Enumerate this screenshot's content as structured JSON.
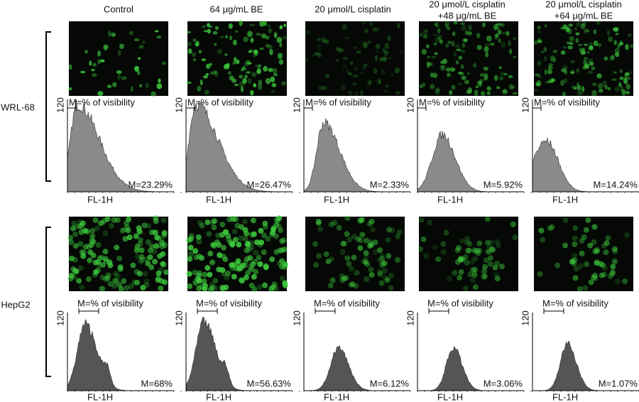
{
  "columns": [
    {
      "title": [
        "Control"
      ]
    },
    {
      "title": [
        "64 μg/mL BE"
      ]
    },
    {
      "title": [
        "20 μmol/L cisplatin"
      ]
    },
    {
      "title": [
        "20 μmol/L cisplatin",
        "+48 μg/mL BE"
      ]
    },
    {
      "title": [
        "20 μmol/L cisplatin",
        "+64 μg/mL BE"
      ]
    }
  ],
  "rows": [
    {
      "label": "WRL-68",
      "panels": [
        {
          "y_label": "120",
          "gate_label": "M=% of visibility",
          "x_label": "FL-1H",
          "value": "M=23.29%"
        },
        {
          "y_label": "120",
          "gate_label": "M=% of visibility",
          "x_label": "FL-1H",
          "value": "M=26.47%"
        },
        {
          "y_label": "120",
          "gate_label": "M=% of visibility",
          "x_label": "FL-1H",
          "value": "M=2.33%"
        },
        {
          "y_label": "120",
          "gate_label": "M=% of visibility",
          "x_label": "FL-1H",
          "value": "M=5.92%"
        },
        {
          "y_label": "120",
          "gate_label": "M=% of visibility",
          "x_label": "FL-1H",
          "value": "M=14.24%"
        }
      ]
    },
    {
      "label": "HepG2",
      "panels": [
        {
          "y_label": "120",
          "gate_label": "M=% of visibility",
          "x_label": "FL-1H",
          "value": "M=68%"
        },
        {
          "y_label": "120",
          "gate_label": "M=% of visibility",
          "x_label": "FL-1H",
          "value": "M=56.63%"
        },
        {
          "y_label": "120",
          "gate_label": "M=% of visibility",
          "x_label": "FL-1H",
          "value": "M=6.12%"
        },
        {
          "y_label": "120",
          "gate_label": "M=% of visibility",
          "x_label": "FL-1H",
          "value": "M=3.06%"
        },
        {
          "y_label": "120",
          "gate_label": "M=% of visibility",
          "x_label": "FL-1H",
          "value": "M=1.07%"
        }
      ]
    }
  ]
}
